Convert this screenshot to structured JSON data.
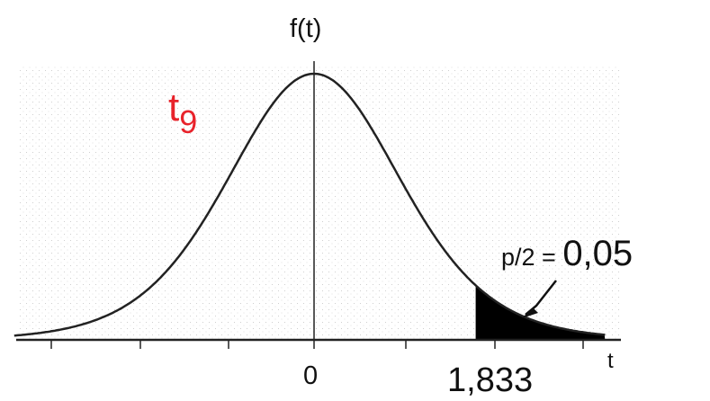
{
  "diagram": {
    "distribution_label": {
      "base": "t",
      "subscript": "9"
    },
    "y_axis_label": "f(t)",
    "x_axis_label": "t",
    "center_tick_label": "0",
    "critical_value_label": "1,833",
    "shaded_area": {
      "prefix": "p/2 = ",
      "value": "0,05"
    },
    "degrees_of_freedom": 9,
    "critical_value": 1.833,
    "tail_probability": 0.05
  },
  "colors": {
    "curve": "#222222",
    "axis": "#222222",
    "background_pattern": "#cfcfcf",
    "shaded_tail": "#000000",
    "label_red": "#e8232b"
  }
}
